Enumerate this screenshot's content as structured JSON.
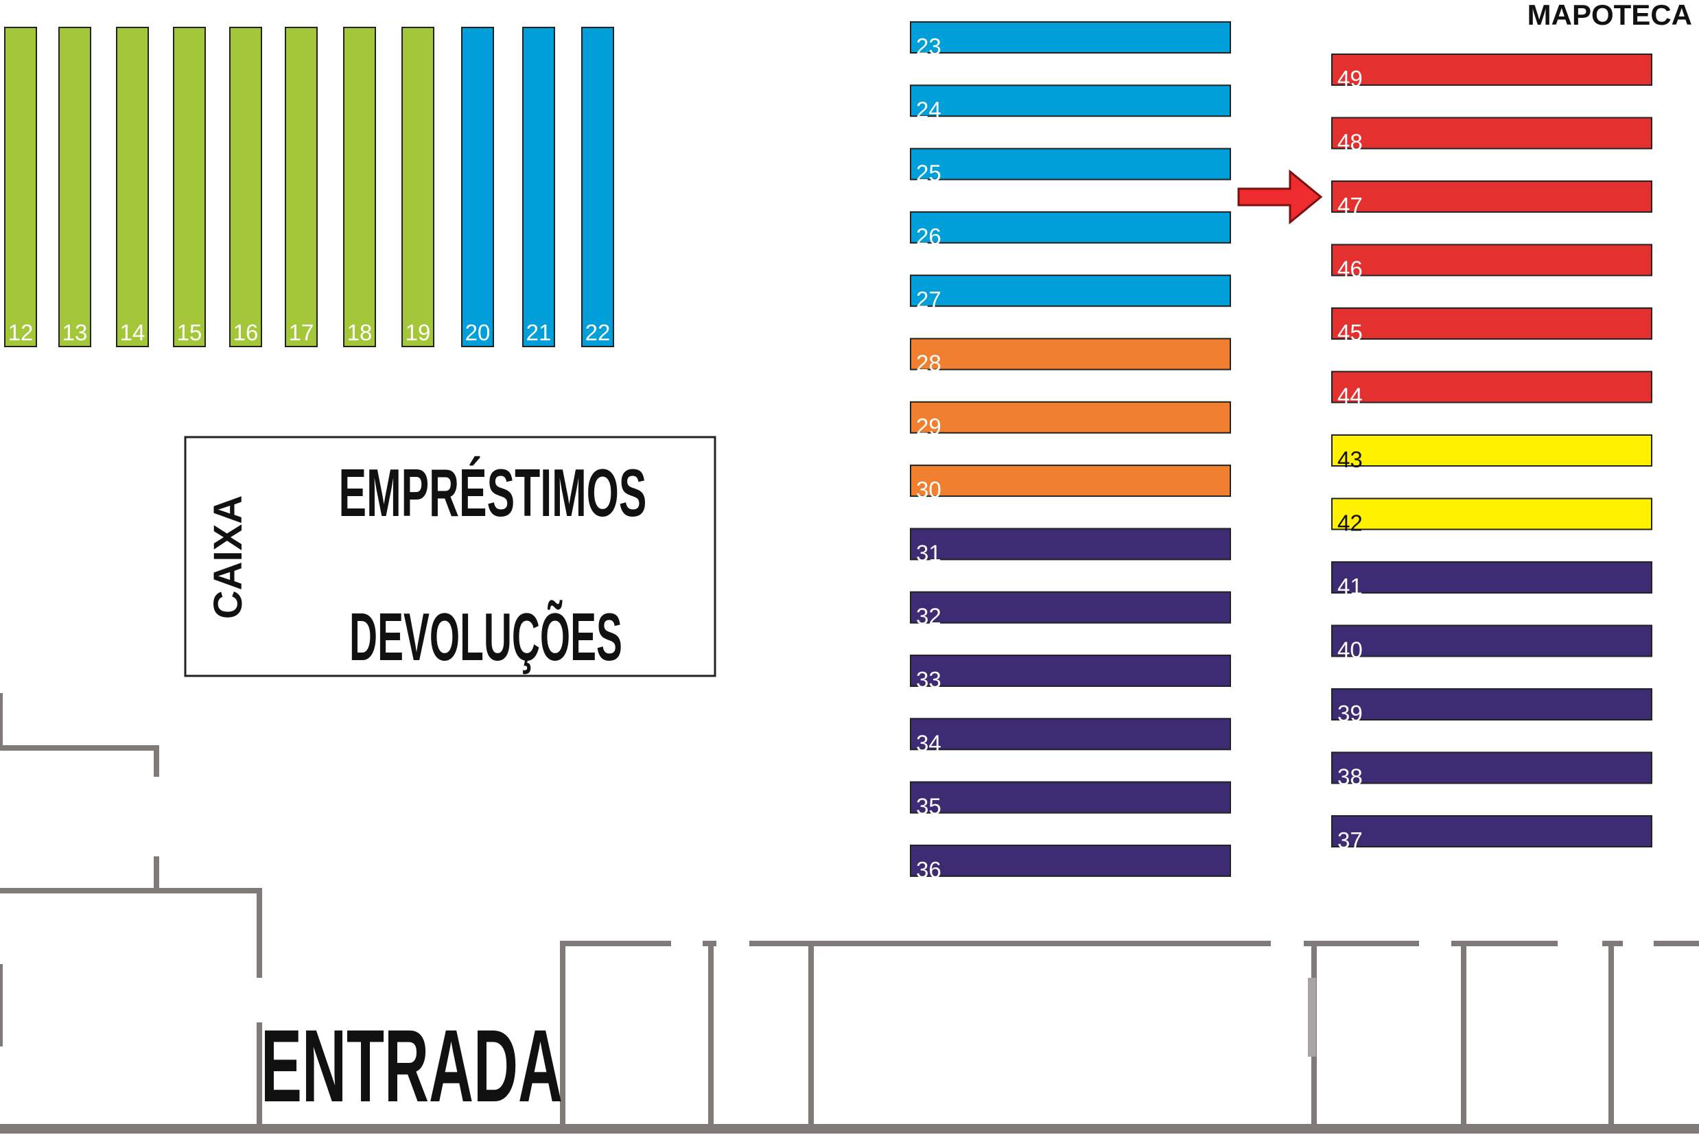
{
  "labels": {
    "mapoteca": "MAPOTECA",
    "caixa": "CAIXA",
    "emprestimos": "EMPRÉSTIMOS",
    "devolucoes": "DEVOLUÇÕES",
    "entrada": "ENTRADA"
  },
  "colors": {
    "green": "#a4c639",
    "blue": "#009fda",
    "orange": "#f08030",
    "purple": "#3d2b74",
    "red": "#e53030",
    "yellow": "#fff100",
    "wall": "#7f7a77",
    "arrow": "#ee2b2e"
  },
  "vertical_shelves": [
    {
      "num": "12",
      "color": "green"
    },
    {
      "num": "13",
      "color": "green"
    },
    {
      "num": "14",
      "color": "green"
    },
    {
      "num": "15",
      "color": "green"
    },
    {
      "num": "16",
      "color": "green"
    },
    {
      "num": "17",
      "color": "green"
    },
    {
      "num": "18",
      "color": "green"
    },
    {
      "num": "19",
      "color": "green"
    },
    {
      "num": "20",
      "color": "blue"
    },
    {
      "num": "21",
      "color": "blue"
    },
    {
      "num": "22",
      "color": "blue"
    }
  ],
  "middle_column": [
    {
      "num": "23",
      "color": "blue"
    },
    {
      "num": "24",
      "color": "blue"
    },
    {
      "num": "25",
      "color": "blue"
    },
    {
      "num": "26",
      "color": "blue"
    },
    {
      "num": "27",
      "color": "blue"
    },
    {
      "num": "28",
      "color": "orange"
    },
    {
      "num": "29",
      "color": "orange"
    },
    {
      "num": "30",
      "color": "orange"
    },
    {
      "num": "31",
      "color": "purple"
    },
    {
      "num": "32",
      "color": "purple"
    },
    {
      "num": "33",
      "color": "purple"
    },
    {
      "num": "34",
      "color": "purple"
    },
    {
      "num": "35",
      "color": "purple"
    },
    {
      "num": "36",
      "color": "purple"
    }
  ],
  "right_column": [
    {
      "num": "49",
      "color": "red"
    },
    {
      "num": "48",
      "color": "red"
    },
    {
      "num": "47",
      "color": "red"
    },
    {
      "num": "46",
      "color": "red"
    },
    {
      "num": "45",
      "color": "red"
    },
    {
      "num": "44",
      "color": "red"
    },
    {
      "num": "43",
      "color": "yellow"
    },
    {
      "num": "42",
      "color": "yellow"
    },
    {
      "num": "41",
      "color": "purple"
    },
    {
      "num": "40",
      "color": "purple"
    },
    {
      "num": "39",
      "color": "purple"
    },
    {
      "num": "38",
      "color": "purple"
    },
    {
      "num": "37",
      "color": "purple"
    }
  ],
  "highlighted_shelf": "47"
}
